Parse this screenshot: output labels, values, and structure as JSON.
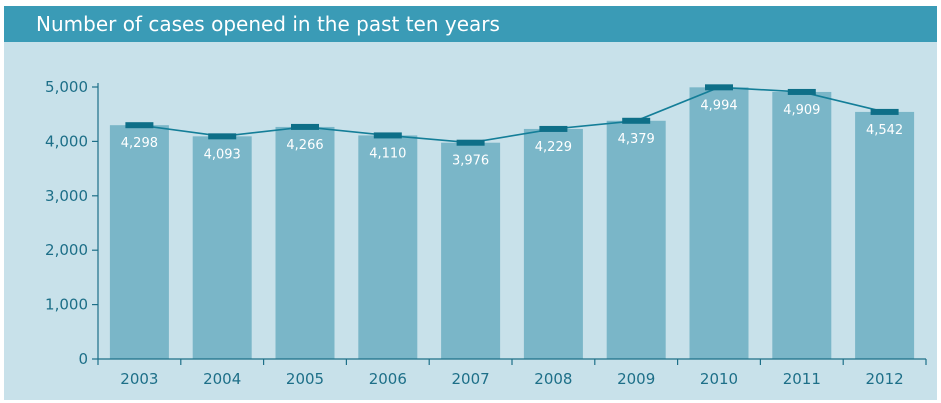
{
  "title": "Number of cases opened in the past ten years",
  "colors": {
    "background": "#c8e1ea",
    "title_bar": "#3a9bb6",
    "bar": "#7ab6c8",
    "line": "#147e98",
    "marker": "#0e6f88",
    "axis": "#1d6f88",
    "value_label": "#ffffff"
  },
  "chart_data": {
    "type": "bar",
    "title": "Number of cases opened in the past ten years",
    "categories": [
      "2003",
      "2004",
      "2005",
      "2006",
      "2007",
      "2008",
      "2009",
      "2010",
      "2011",
      "2012"
    ],
    "values": [
      4298,
      4093,
      4266,
      4110,
      3976,
      4229,
      4379,
      4994,
      4909,
      4542
    ],
    "value_labels": [
      "4,298",
      "4,093",
      "4,266",
      "4,110",
      "3,976",
      "4,229",
      "4,379",
      "4,994",
      "4,909",
      "4,542"
    ],
    "overlay": "line with bar-cap markers through bar tops",
    "ylim": [
      0,
      5000
    ],
    "yticks": [
      0,
      1000,
      2000,
      3000,
      4000,
      5000
    ],
    "ytick_labels": [
      "0",
      "1,000",
      "2,000",
      "3,000",
      "4,000",
      "5,000"
    ],
    "xlabel": "",
    "ylabel": "",
    "grid": false,
    "legend": "none"
  }
}
